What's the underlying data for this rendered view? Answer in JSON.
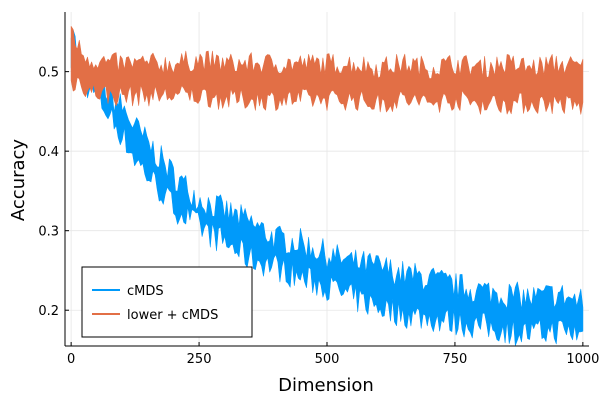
{
  "chart_data": {
    "type": "line",
    "title": "",
    "xlabel": "Dimension",
    "ylabel": "Accuracy",
    "xlim": [
      -12,
      1012
    ],
    "ylim": [
      0.155,
      0.575
    ],
    "xticks": [
      0,
      250,
      500,
      750,
      1000
    ],
    "xtick_labels": [
      "0",
      "250",
      "500",
      "750",
      "1000"
    ],
    "yticks": [
      0.2,
      0.3,
      0.4,
      0.5
    ],
    "ytick_labels": [
      "0.2",
      "0.3",
      "0.4",
      "0.5"
    ],
    "grid": true,
    "legend_position": "bottom-left",
    "series": [
      {
        "name": "cMDS",
        "color": "#009AFA",
        "x": [
          0,
          5,
          10,
          20,
          30,
          40,
          50,
          60,
          75,
          100,
          125,
          150,
          175,
          200,
          250,
          300,
          350,
          400,
          450,
          500,
          550,
          600,
          650,
          700,
          750,
          800,
          850,
          900,
          950,
          1000
        ],
        "upper": [
          0.56,
          0.56,
          0.52,
          0.51,
          0.5,
          0.495,
          0.49,
          0.485,
          0.47,
          0.455,
          0.43,
          0.41,
          0.39,
          0.37,
          0.34,
          0.325,
          0.31,
          0.29,
          0.285,
          0.27,
          0.26,
          0.255,
          0.245,
          0.24,
          0.23,
          0.225,
          0.22,
          0.215,
          0.22,
          0.21
        ],
        "lower": [
          0.49,
          0.5,
          0.5,
          0.49,
          0.485,
          0.475,
          0.47,
          0.46,
          0.445,
          0.42,
          0.39,
          0.37,
          0.35,
          0.33,
          0.305,
          0.285,
          0.265,
          0.255,
          0.24,
          0.23,
          0.215,
          0.205,
          0.195,
          0.19,
          0.185,
          0.18,
          0.175,
          0.17,
          0.175,
          0.17
        ]
      },
      {
        "name": "lower + cMDS",
        "color": "#E26F46",
        "x": [
          0,
          5,
          10,
          20,
          30,
          40,
          50,
          75,
          100,
          150,
          200,
          250,
          300,
          350,
          400,
          450,
          500,
          550,
          600,
          650,
          700,
          750,
          800,
          850,
          900,
          950,
          1000
        ],
        "upper": [
          0.555,
          0.55,
          0.535,
          0.525,
          0.52,
          0.515,
          0.515,
          0.51,
          0.51,
          0.51,
          0.51,
          0.515,
          0.51,
          0.51,
          0.51,
          0.51,
          0.51,
          0.51,
          0.505,
          0.51,
          0.505,
          0.51,
          0.505,
          0.51,
          0.505,
          0.51,
          0.505
        ],
        "lower": [
          0.485,
          0.485,
          0.49,
          0.485,
          0.48,
          0.475,
          0.475,
          0.47,
          0.47,
          0.47,
          0.47,
          0.47,
          0.465,
          0.465,
          0.465,
          0.465,
          0.465,
          0.465,
          0.46,
          0.465,
          0.46,
          0.465,
          0.46,
          0.46,
          0.46,
          0.46,
          0.455
        ]
      }
    ]
  }
}
